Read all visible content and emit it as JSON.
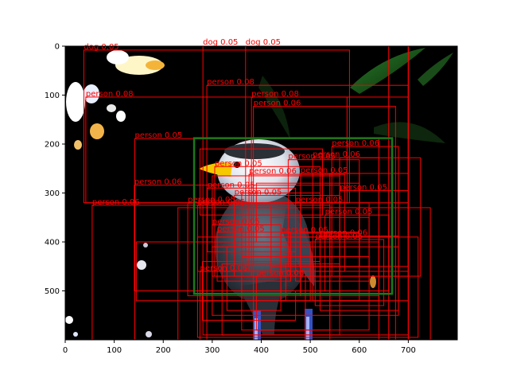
{
  "chart_data": {
    "type": "image-detections",
    "image_size": [
      800,
      600
    ],
    "xlim": [
      0,
      800
    ],
    "ylim": [
      600,
      0
    ],
    "x_ticks": [
      0,
      100,
      200,
      300,
      400,
      500,
      600,
      700
    ],
    "y_ticks": [
      0,
      100,
      200,
      300,
      400,
      500
    ],
    "colors": {
      "detection_box": "#ff0000",
      "detection_label": "#ff0000",
      "highlight_box": "#1a7a1a",
      "background": "#000000"
    },
    "highlight_box": {
      "x0": 263,
      "y0": 188,
      "x1": 667,
      "y1": 506
    },
    "detections": [
      {
        "label": "dog 0.05",
        "x0": 38,
        "y0": 8,
        "x1": 580,
        "y1": 320,
        "show_label": true
      },
      {
        "label": "dog 0.05",
        "x0": 281,
        "y0": -2,
        "x1": 700,
        "y1": 590,
        "show_label": true
      },
      {
        "label": "dog 0.05",
        "x0": 368,
        "y0": -2,
        "x1": 700,
        "y1": 460,
        "show_label": true
      },
      {
        "label": "person 0.08",
        "x0": 289,
        "y0": 80,
        "x1": 700,
        "y1": 600,
        "show_label": true
      },
      {
        "label": "person 0.08",
        "x0": 42,
        "y0": 104,
        "x1": 575,
        "y1": 320,
        "show_label": true
      },
      {
        "label": "person 0.08",
        "x0": 380,
        "y0": 104,
        "x1": 700,
        "y1": 470,
        "show_label": true
      },
      {
        "label": "person 0.06",
        "x0": 384,
        "y0": 123,
        "x1": 674,
        "y1": 600,
        "show_label": true
      },
      {
        "label": "person 0.05",
        "x0": 142,
        "y0": 189,
        "x1": 640,
        "y1": 600,
        "show_label": true
      },
      {
        "label": "person 0.06",
        "x0": 544,
        "y0": 205,
        "x1": 680,
        "y1": 470,
        "show_label": true
      },
      {
        "label": "person 0.06",
        "x0": 505,
        "y0": 228,
        "x1": 640,
        "y1": 520,
        "show_label": true
      },
      {
        "label": "person 0.05",
        "x0": 455,
        "y0": 232,
        "x1": 600,
        "y1": 450,
        "show_label": true
      },
      {
        "label": "person 0.05",
        "x0": 305,
        "y0": 246,
        "x1": 520,
        "y1": 470,
        "show_label": true
      },
      {
        "label": "person 0.06",
        "x0": 375,
        "y0": 262,
        "x1": 570,
        "y1": 460,
        "show_label": true
      },
      {
        "label": "person 0.06",
        "x0": 141,
        "y0": 284,
        "x1": 560,
        "y1": 500,
        "show_label": true
      },
      {
        "label": "person 0.06",
        "x0": 55,
        "y0": 325,
        "x1": 540,
        "y1": 600,
        "show_label": true
      },
      {
        "label": "person 0.05",
        "x0": 560,
        "y0": 295,
        "x1": 700,
        "y1": 520,
        "show_label": true
      },
      {
        "label": "person 0.05",
        "x0": 480,
        "y0": 260,
        "x1": 600,
        "y1": 380,
        "show_label": true
      },
      {
        "label": "person 0.05",
        "x0": 290,
        "y0": 290,
        "x1": 470,
        "y1": 420,
        "show_label": true
      },
      {
        "label": "person 0.05",
        "x0": 345,
        "y0": 305,
        "x1": 560,
        "y1": 470,
        "show_label": true
      },
      {
        "label": "person 0.05",
        "x0": 270,
        "y0": 325,
        "x1": 420,
        "y1": 460,
        "show_label": true
      },
      {
        "label": "person 0.05",
        "x0": 250,
        "y0": 320,
        "x1": 480,
        "y1": 510,
        "show_label": true
      },
      {
        "label": "person 0.05",
        "x0": 470,
        "y0": 320,
        "x1": 620,
        "y1": 480,
        "show_label": true
      },
      {
        "label": "person 0.05",
        "x0": 530,
        "y0": 345,
        "x1": 660,
        "y1": 500,
        "show_label": true
      },
      {
        "label": "person 0.05",
        "x0": 310,
        "y0": 380,
        "x1": 460,
        "y1": 480,
        "show_label": true
      },
      {
        "label": "person 0.05",
        "x0": 300,
        "y0": 365,
        "x1": 440,
        "y1": 470,
        "show_label": true
      },
      {
        "label": "person 0.05",
        "x0": 440,
        "y0": 382,
        "x1": 600,
        "y1": 520,
        "show_label": true
      },
      {
        "label": "person 0.06",
        "x0": 520,
        "y0": 388,
        "x1": 680,
        "y1": 540,
        "show_label": true
      },
      {
        "label": "person 0.06",
        "x0": 510,
        "y0": 395,
        "x1": 650,
        "y1": 530,
        "show_label": true
      },
      {
        "label": "person 0.06",
        "x0": 275,
        "y0": 460,
        "x1": 490,
        "y1": 600,
        "show_label": true
      },
      {
        "label": "person 0.06",
        "x0": 390,
        "y0": 470,
        "x1": 540,
        "y1": 580,
        "show_label": true
      },
      {
        "label": "",
        "x0": 660,
        "y0": 0,
        "x1": 700,
        "y1": 600,
        "show_label": false
      },
      {
        "label": "",
        "x0": 230,
        "y0": 330,
        "x1": 745,
        "y1": 600,
        "show_label": false
      },
      {
        "label": "",
        "x0": 270,
        "y0": 390,
        "x1": 720,
        "y1": 595,
        "show_label": false
      },
      {
        "label": "",
        "x0": 300,
        "y0": 410,
        "x1": 680,
        "y1": 550,
        "show_label": false
      },
      {
        "label": "",
        "x0": 360,
        "y0": 430,
        "x1": 620,
        "y1": 580,
        "show_label": false
      },
      {
        "label": "",
        "x0": 320,
        "y0": 445,
        "x1": 560,
        "y1": 590,
        "show_label": false
      },
      {
        "label": "",
        "x0": 420,
        "y0": 350,
        "x1": 620,
        "y1": 450,
        "show_label": false
      },
      {
        "label": "",
        "x0": 560,
        "y0": 228,
        "x1": 725,
        "y1": 470,
        "show_label": false
      },
      {
        "label": "",
        "x0": 540,
        "y0": 260,
        "x1": 700,
        "y1": 470,
        "show_label": false
      },
      {
        "label": "",
        "x0": 600,
        "y0": 320,
        "x1": 700,
        "y1": 450,
        "show_label": false
      },
      {
        "label": "",
        "x0": 330,
        "y0": 410,
        "x1": 440,
        "y1": 540,
        "show_label": false
      },
      {
        "label": "",
        "x0": 280,
        "y0": 440,
        "x1": 450,
        "y1": 520,
        "show_label": false
      },
      {
        "label": "",
        "x0": 480,
        "y0": 400,
        "x1": 640,
        "y1": 510,
        "show_label": false
      },
      {
        "label": "",
        "x0": 390,
        "y0": 280,
        "x1": 600,
        "y1": 400,
        "show_label": false
      },
      {
        "label": "",
        "x0": 300,
        "y0": 265,
        "x1": 560,
        "y1": 390,
        "show_label": false
      },
      {
        "label": "",
        "x0": 275,
        "y0": 210,
        "x1": 525,
        "y1": 345,
        "show_label": false
      },
      {
        "label": "",
        "x0": 360,
        "y0": 300,
        "x1": 520,
        "y1": 440,
        "show_label": false
      },
      {
        "label": "",
        "x0": 145,
        "y0": 400,
        "x1": 500,
        "y1": 520,
        "show_label": false
      },
      {
        "label": "",
        "x0": 280,
        "y0": 500,
        "x1": 470,
        "y1": 560,
        "show_label": false
      }
    ]
  }
}
